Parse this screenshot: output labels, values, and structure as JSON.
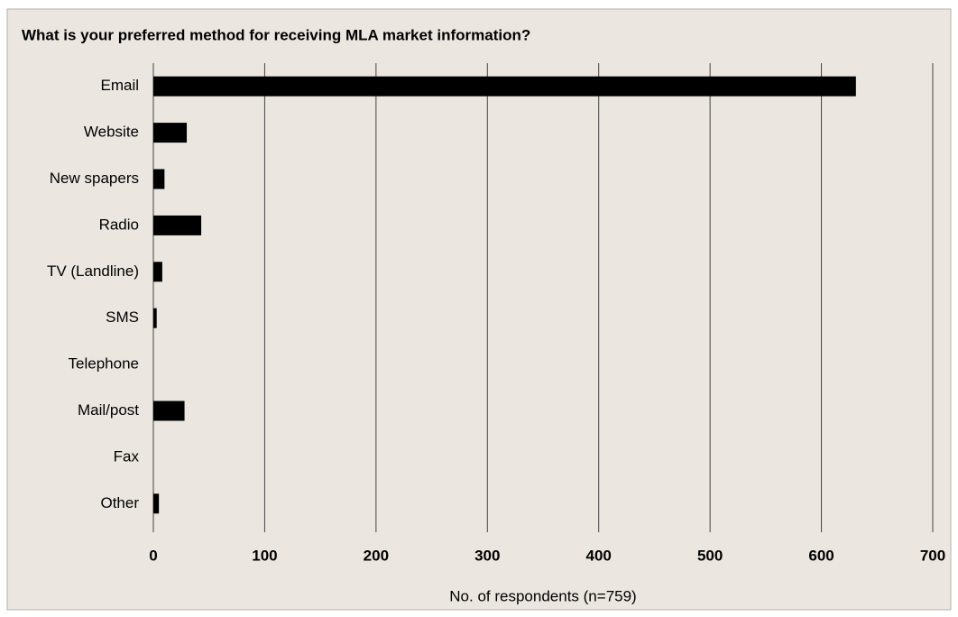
{
  "chart_data": {
    "type": "barh",
    "title": "What is your preferred method for receiving MLA market information?",
    "x_label": "No. of respondents (n=759)",
    "categories": [
      "Email",
      "Website",
      "New spapers",
      "Radio",
      "TV (Landline)",
      "SMS",
      "Telephone",
      "Mail/post",
      "Fax",
      "Other"
    ],
    "values": [
      631,
      30,
      10,
      43,
      8,
      3,
      0,
      28,
      0,
      5
    ],
    "color": "#000000",
    "xlim": [
      0,
      700
    ],
    "xticks": [
      0,
      100,
      200,
      300,
      400,
      500,
      600,
      700
    ],
    "grid": true
  }
}
